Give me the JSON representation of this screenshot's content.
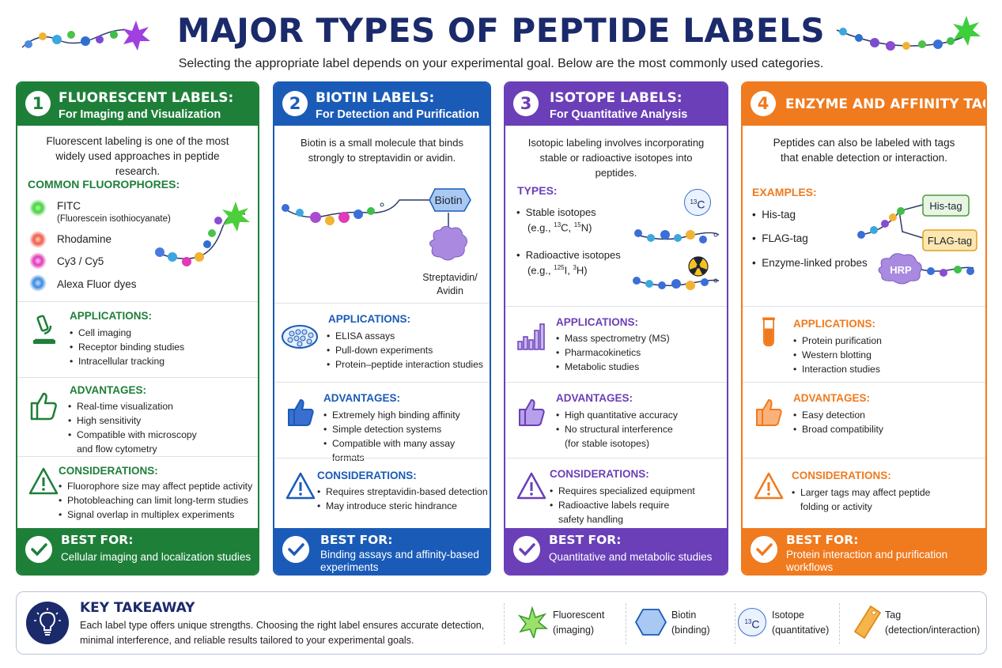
{
  "header": {
    "title": "MAJOR TYPES OF PEPTIDE LABELS",
    "subtitle": "Selecting the appropriate label depends on your experimental goal. Below are the most commonly used categories."
  },
  "colors": {
    "green": "#1e7f39",
    "blue": "#1a5bb8",
    "purple": "#6a3fb8",
    "orange": "#f07a1e",
    "navy": "#1b2a6b"
  },
  "columns": [
    {
      "number": "1",
      "title": "FLUORESCENT LABELS:",
      "subtitle": "For Imaging and Visualization",
      "intro": "Fluorescent labeling is one of the most widely used approaches in peptide research.",
      "list_heading": "COMMON FLUOROPHORES:",
      "items": [
        "FITC",
        "(Fluorescein isothiocyanate)",
        "Rhodamine",
        "Cy3 / Cy5",
        "Alexa Fluor dyes"
      ],
      "applications": {
        "title": "APPLICATIONS:",
        "items": [
          "Cell imaging",
          "Receptor binding studies",
          "Intracellular tracking"
        ]
      },
      "advantages": {
        "title": "ADVANTAGES:",
        "items": [
          "Real-time visualization",
          "High sensitivity",
          "Compatible with microscopy",
          "and flow cytometry"
        ]
      },
      "considerations": {
        "title": "CONSIDERATIONS:",
        "items": [
          "Fluorophore size may affect peptide activity",
          "Photobleaching can limit long-term studies",
          "Signal overlap in multiplex experiments"
        ]
      },
      "best_for": {
        "title": "BEST FOR:",
        "text": "Cellular imaging and localization studies"
      }
    },
    {
      "number": "2",
      "title": "BIOTIN LABELS:",
      "subtitle": "For Detection and Purification",
      "intro": "Biotin is a small molecule that binds strongly to streptavidin or avidin.",
      "diagram": {
        "biotin": "Biotin",
        "streptavidin": "Streptavidin/",
        "avidin": "Avidin"
      },
      "applications": {
        "title": "APPLICATIONS:",
        "items": [
          "ELISA assays",
          "Pull-down experiments",
          "Protein–peptide interaction studies"
        ]
      },
      "advantages": {
        "title": "ADVANTAGES:",
        "items": [
          "Extremely high binding affinity",
          "Simple detection systems",
          "Compatible with many assay formats"
        ]
      },
      "considerations": {
        "title": "CONSIDERATIONS:",
        "items": [
          "Requires streptavidin-based detection",
          "May introduce steric hindrance"
        ]
      },
      "best_for": {
        "title": "BEST FOR:",
        "text": "Binding assays and affinity-based experiments"
      }
    },
    {
      "number": "3",
      "title": "ISOTOPE LABELS:",
      "subtitle": "For Quantitative Analysis",
      "intro": "Isotopic labeling involves incorporating stable or radioactive isotopes into peptides.",
      "list_heading": "TYPES:",
      "types": [
        {
          "name": "Stable isotopes",
          "eg_prefix": "(e.g., ",
          "m1": "13",
          "e1": "C, ",
          "m2": "15",
          "e2": "N)"
        },
        {
          "name": "Radioactive isotopes",
          "eg_prefix": "(e.g., ",
          "m1": "125",
          "e1": "I, ",
          "m2": "3",
          "e2": "H)"
        }
      ],
      "badge": {
        "mass": "13",
        "element": "C"
      },
      "applications": {
        "title": "APPLICATIONS:",
        "items": [
          "Mass spectrometry (MS)",
          "Pharmacokinetics",
          "Metabolic studies"
        ]
      },
      "advantages": {
        "title": "ADVANTAGES:",
        "items": [
          "High quantitative accuracy",
          "No structural interference",
          "(for stable isotopes)"
        ]
      },
      "considerations": {
        "title": "CONSIDERATIONS:",
        "items": [
          "Requires specialized equipment",
          "Radioactive labels require",
          "safety handling"
        ]
      },
      "best_for": {
        "title": "BEST FOR:",
        "text": "Quantitative and metabolic studies"
      }
    },
    {
      "number": "4",
      "title": "ENZYME AND AFFINITY TAGS",
      "intro": "Peptides can also be labeled with tags that enable detection or interaction.",
      "list_heading": "EXAMPLES:",
      "items": [
        "His-tag",
        "FLAG-tag",
        "Enzyme-linked probes"
      ],
      "diagram": {
        "his": "His-tag",
        "flag": "FLAG-tag",
        "hrp": "HRP"
      },
      "applications": {
        "title": "APPLICATIONS:",
        "items": [
          "Protein purification",
          "Western blotting",
          "Interaction studies"
        ]
      },
      "advantages": {
        "title": "ADVANTAGES:",
        "items": [
          "Easy detection",
          "Broad compatibility"
        ]
      },
      "considerations": {
        "title": "CONSIDERATIONS:",
        "items": [
          "Larger tags may affect peptide",
          "folding or activity"
        ]
      },
      "best_for": {
        "title": "BEST FOR:",
        "text": "Protein interaction and purification workflows"
      }
    }
  ],
  "takeaway": {
    "title": "KEY TAKEAWAY",
    "text": "Each label type offers unique strengths. Choosing the right label ensures accurate detection, minimal interference, and reliable results tailored to your experimental goals.",
    "legend": [
      {
        "name": "Fluorescent",
        "sub": "(imaging)"
      },
      {
        "name": "Biotin",
        "sub": "(binding)"
      },
      {
        "name": "Isotope",
        "sub": "(quantitative)",
        "mass": "13",
        "element": "C"
      },
      {
        "name": "Tag",
        "sub": "(detection/interaction)"
      }
    ]
  }
}
